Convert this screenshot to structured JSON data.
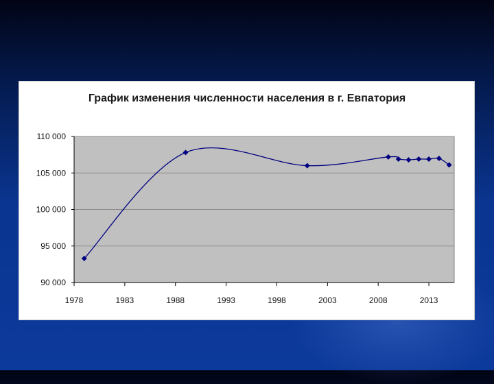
{
  "colors": {
    "plot_bg": "#c0c0c0",
    "line": "#000080",
    "grid": "#8c8c8c"
  },
  "chart_data": {
    "type": "line",
    "title": "График изменения численности населения в г. Евпатория",
    "xlabel": "",
    "ylabel": "",
    "xlim": [
      1978,
      2015.5
    ],
    "ylim": [
      90000,
      110000
    ],
    "x_ticks": [
      1978,
      1983,
      1988,
      1993,
      1998,
      2003,
      2008,
      2013
    ],
    "y_ticks": [
      90000,
      95000,
      100000,
      105000,
      110000
    ],
    "y_tick_labels": [
      "90 000",
      "95 000",
      "100 000",
      "105 000",
      "110 000"
    ],
    "grid": "horizontal",
    "legend": "none",
    "series": [
      {
        "x": [
          1979,
          1989,
          2001,
          2009,
          2010,
          2011,
          2012,
          2013,
          2014,
          2015
        ],
        "y": [
          93300,
          107800,
          106000,
          107200,
          106900,
          106800,
          106900,
          106900,
          107000,
          106100
        ]
      }
    ]
  }
}
